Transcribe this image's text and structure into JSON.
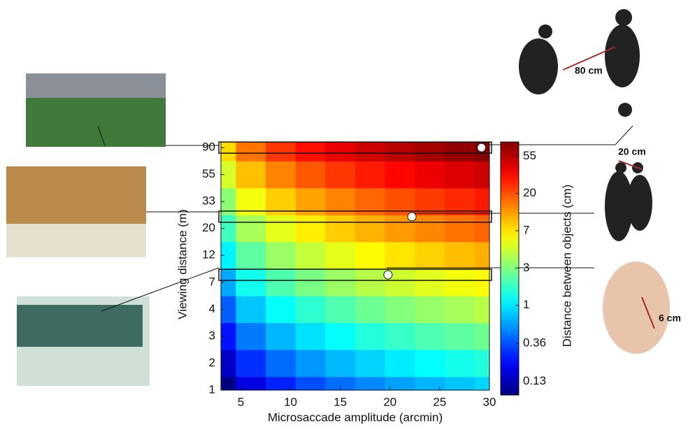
{
  "chart_data": {
    "type": "heatmap",
    "x_label": "Microsaccade amplitude (arcmin)",
    "y_label": "Viewing distance (m)",
    "colorbar_label": "Distance between objects (cm)",
    "y_scale": "log",
    "color_scale": "log",
    "colormap": "jet",
    "xlim": [
      3,
      30
    ],
    "ylim": [
      1,
      100
    ],
    "clim": [
      0.09,
      80
    ],
    "xticks": [
      5,
      10,
      15,
      20,
      25,
      30
    ],
    "yticks": [
      1,
      {
        "value": 1.65,
        "label": "2"
      },
      {
        "value": 2.72,
        "label": "3"
      },
      {
        "value": 4.48,
        "label": "4"
      },
      {
        "value": 7.39,
        "label": "7"
      },
      {
        "value": 12.2,
        "label": "12"
      },
      {
        "value": 20.1,
        "label": "20"
      },
      {
        "value": 33.1,
        "label": "33"
      },
      {
        "value": 54.6,
        "label": "55"
      },
      90
    ],
    "cticks": [
      {
        "value": 0.13,
        "label": "0.13"
      },
      {
        "value": 0.36,
        "label": "0.36"
      },
      1,
      {
        "value": 2.72,
        "label": "3"
      },
      {
        "value": 7.39,
        "label": "7"
      },
      {
        "value": 20.1,
        "label": "20"
      },
      {
        "value": 54.6,
        "label": "55"
      }
    ],
    "x": [
      3,
      6,
      9,
      12,
      15,
      18,
      21,
      24,
      27,
      30
    ],
    "y": [
      1,
      1.65,
      2.72,
      4.48,
      7.39,
      12.2,
      20.1,
      33.1,
      54.6,
      90
    ],
    "values": [
      [
        0.087,
        0.175,
        0.262,
        0.349,
        0.436,
        0.524,
        0.611,
        0.698,
        0.786,
        0.873
      ],
      [
        0.144,
        0.288,
        0.432,
        0.576,
        0.72,
        0.864,
        1.01,
        1.15,
        1.3,
        1.44
      ],
      [
        0.237,
        0.475,
        0.713,
        0.949,
        1.19,
        1.43,
        1.66,
        1.9,
        2.14,
        2.37
      ],
      [
        0.391,
        0.782,
        1.17,
        1.56,
        1.95,
        2.35,
        2.74,
        3.13,
        3.52,
        3.91
      ],
      [
        0.645,
        1.29,
        1.94,
        2.58,
        3.22,
        3.87,
        4.52,
        5.16,
        5.81,
        6.45
      ],
      [
        1.07,
        2.13,
        3.2,
        4.26,
        5.32,
        6.39,
        7.45,
        8.52,
        9.59,
        10.7
      ],
      [
        1.75,
        3.51,
        5.27,
        7.01,
        8.76,
        10.5,
        12.3,
        14,
        15.8,
        17.5
      ],
      [
        2.89,
        5.78,
        8.67,
        11.6,
        14.4,
        17.3,
        20.2,
        23.1,
        26,
        28.9
      ],
      [
        4.77,
        9.53,
        14.3,
        19.1,
        23.8,
        28.6,
        33.4,
        38.1,
        42.9,
        47.7
      ],
      [
        7.86,
        15.7,
        23.6,
        31.4,
        39.2,
        47.2,
        55,
        62.8,
        70.7,
        78.6
      ]
    ],
    "highlights": [
      {
        "x": 29.2,
        "y": 90
      },
      {
        "x": 22.2,
        "y": 25
      },
      {
        "x": 19.8,
        "y": 8.5
      }
    ],
    "annotations": [
      "80 cm",
      "20 cm",
      "6 cm"
    ]
  }
}
